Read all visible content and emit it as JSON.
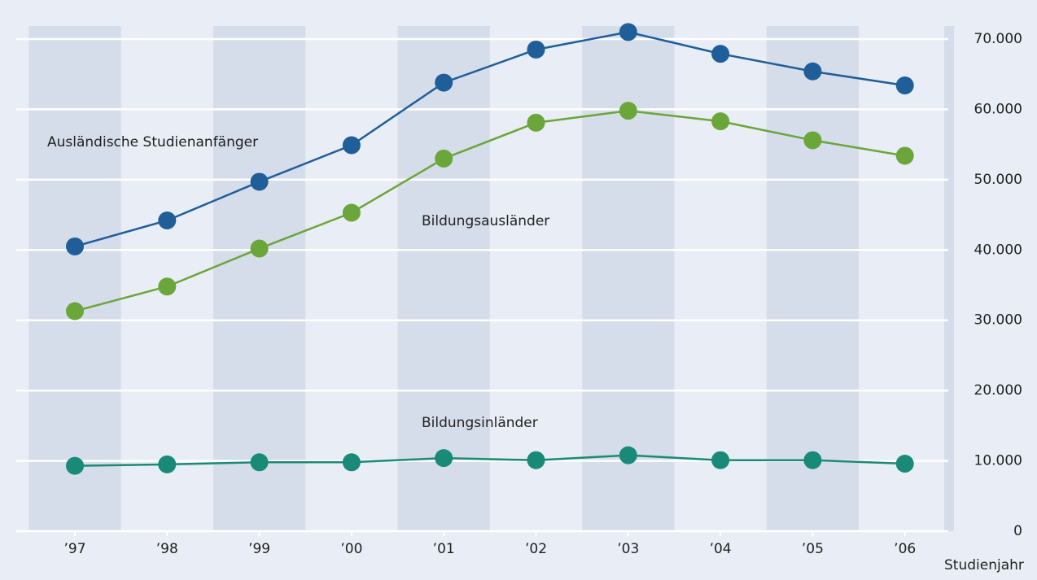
{
  "chart_data": {
    "type": "line",
    "categories": [
      "’97",
      "’98",
      "’99",
      "’00",
      "’01",
      "’02",
      "’03",
      "’04",
      "’05",
      "’06"
    ],
    "series": [
      {
        "name": "Ausländische Studienanfänger",
        "color": "#1f5e99",
        "values": [
          40500,
          44200,
          49700,
          54900,
          63800,
          68500,
          71000,
          67900,
          65400,
          63400
        ]
      },
      {
        "name": "Bildungsausländer",
        "color": "#6aa63a",
        "values": [
          31300,
          34800,
          40200,
          45300,
          53000,
          58100,
          59800,
          58300,
          55600,
          53400
        ]
      },
      {
        "name": "Bildungsinländer",
        "color": "#1a8a78",
        "values": [
          9300,
          9500,
          9800,
          9800,
          10400,
          10100,
          10800,
          10100,
          10100,
          9600
        ]
      }
    ],
    "xlabel": "Studienjahr",
    "ylim": [
      0,
      70000
    ],
    "yticks": [
      0,
      {
        "value": 10000,
        "label": "10.000"
      },
      {
        "value": 20000,
        "label": "20.000"
      },
      {
        "value": 30000,
        "label": "30.000"
      },
      {
        "value": 40000,
        "label": "40.000"
      },
      {
        "value": 50000,
        "label": "50.000"
      },
      {
        "value": 60000,
        "label": "60.000"
      },
      {
        "value": 70000,
        "label": "70.000"
      }
    ],
    "grid": true
  }
}
